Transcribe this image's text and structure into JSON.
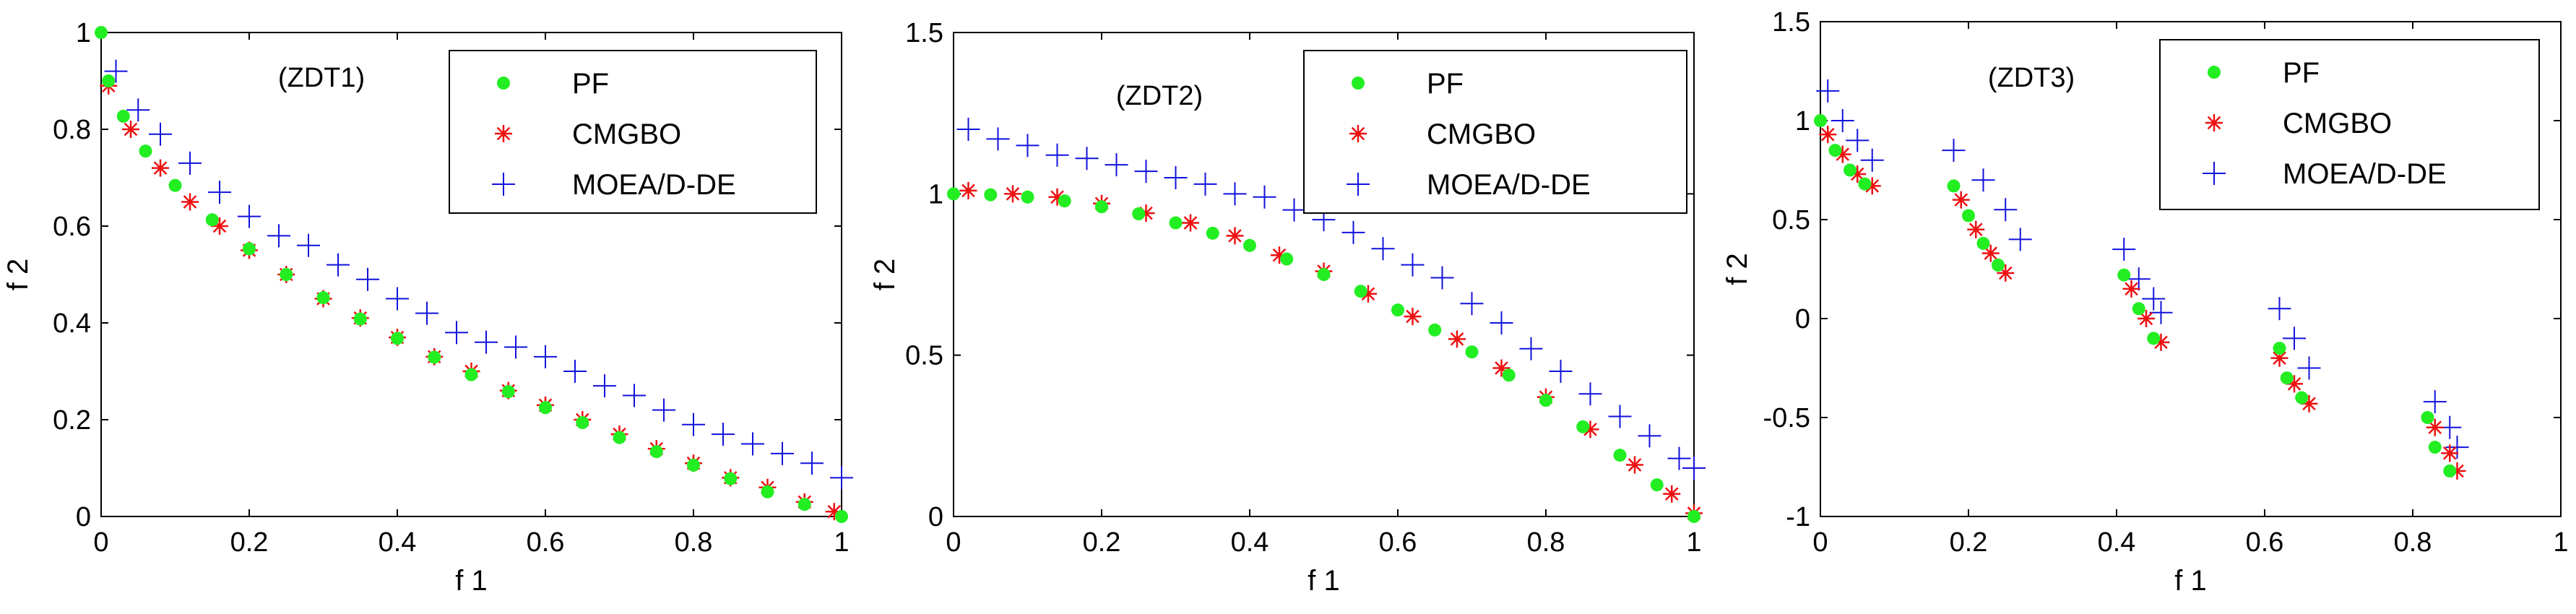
{
  "colors": {
    "pf": "#22ee22",
    "cmgbo": "#ee1111",
    "moead": "#1111dd",
    "axis": "#000000"
  },
  "chart_data": [
    {
      "type": "scatter",
      "annotation": "(ZDT1)",
      "xlabel": "f 1",
      "ylabel": "f 2",
      "xlim": [
        0,
        1
      ],
      "ylim": [
        0,
        1
      ],
      "xticks": [
        "0",
        "0.2",
        "0.4",
        "0.6",
        "0.8",
        "1"
      ],
      "yticks": [
        "0",
        "0.2",
        "0.4",
        "0.6",
        "0.8",
        "1"
      ],
      "legend_position": "top-right",
      "series": [
        {
          "name": "PF",
          "marker": "dot",
          "points": [
            [
              0,
              1
            ],
            [
              0.01,
              0.9
            ],
            [
              0.03,
              0.827
            ],
            [
              0.06,
              0.755
            ],
            [
              0.1,
              0.684
            ],
            [
              0.15,
              0.613
            ],
            [
              0.2,
              0.553
            ],
            [
              0.25,
              0.5
            ],
            [
              0.3,
              0.452
            ],
            [
              0.35,
              0.408
            ],
            [
              0.4,
              0.368
            ],
            [
              0.45,
              0.329
            ],
            [
              0.5,
              0.293
            ],
            [
              0.55,
              0.258
            ],
            [
              0.6,
              0.225
            ],
            [
              0.65,
              0.194
            ],
            [
              0.7,
              0.163
            ],
            [
              0.75,
              0.134
            ],
            [
              0.8,
              0.106
            ],
            [
              0.85,
              0.078
            ],
            [
              0.9,
              0.051
            ],
            [
              0.95,
              0.025
            ],
            [
              1,
              0
            ]
          ]
        },
        {
          "name": "CMGBO",
          "marker": "star",
          "points": [
            [
              0.01,
              0.89
            ],
            [
              0.04,
              0.8
            ],
            [
              0.08,
              0.72
            ],
            [
              0.12,
              0.65
            ],
            [
              0.16,
              0.6
            ],
            [
              0.2,
              0.55
            ],
            [
              0.25,
              0.5
            ],
            [
              0.3,
              0.45
            ],
            [
              0.35,
              0.41
            ],
            [
              0.4,
              0.37
            ],
            [
              0.45,
              0.33
            ],
            [
              0.5,
              0.3
            ],
            [
              0.55,
              0.26
            ],
            [
              0.6,
              0.23
            ],
            [
              0.65,
              0.2
            ],
            [
              0.7,
              0.17
            ],
            [
              0.75,
              0.14
            ],
            [
              0.8,
              0.11
            ],
            [
              0.85,
              0.08
            ],
            [
              0.9,
              0.06
            ],
            [
              0.95,
              0.03
            ],
            [
              0.99,
              0.01
            ]
          ]
        },
        {
          "name": "MOEA/D-DE",
          "marker": "plus",
          "points": [
            [
              0.02,
              0.92
            ],
            [
              0.05,
              0.84
            ],
            [
              0.08,
              0.79
            ],
            [
              0.12,
              0.73
            ],
            [
              0.16,
              0.67
            ],
            [
              0.2,
              0.62
            ],
            [
              0.24,
              0.58
            ],
            [
              0.28,
              0.56
            ],
            [
              0.32,
              0.52
            ],
            [
              0.36,
              0.49
            ],
            [
              0.4,
              0.45
            ],
            [
              0.44,
              0.42
            ],
            [
              0.48,
              0.38
            ],
            [
              0.52,
              0.36
            ],
            [
              0.56,
              0.35
            ],
            [
              0.6,
              0.33
            ],
            [
              0.64,
              0.3
            ],
            [
              0.68,
              0.27
            ],
            [
              0.72,
              0.25
            ],
            [
              0.76,
              0.22
            ],
            [
              0.8,
              0.19
            ],
            [
              0.84,
              0.17
            ],
            [
              0.88,
              0.15
            ],
            [
              0.92,
              0.13
            ],
            [
              0.96,
              0.11
            ],
            [
              1,
              0.08
            ]
          ]
        }
      ]
    },
    {
      "type": "scatter",
      "annotation": "(ZDT2)",
      "xlabel": "f 1",
      "ylabel": "f 2",
      "xlim": [
        0,
        1
      ],
      "ylim": [
        0,
        1.5
      ],
      "xticks": [
        "0",
        "0.2",
        "0.4",
        "0.6",
        "0.8",
        "1"
      ],
      "yticks": [
        "0",
        "0.5",
        "1",
        "1.5"
      ],
      "legend_position": "top-right",
      "series": [
        {
          "name": "PF",
          "marker": "dot",
          "points": [
            [
              0,
              1
            ],
            [
              0.05,
              0.997
            ],
            [
              0.1,
              0.99
            ],
            [
              0.15,
              0.978
            ],
            [
              0.2,
              0.96
            ],
            [
              0.25,
              0.938
            ],
            [
              0.3,
              0.91
            ],
            [
              0.35,
              0.878
            ],
            [
              0.4,
              0.84
            ],
            [
              0.45,
              0.798
            ],
            [
              0.5,
              0.75
            ],
            [
              0.55,
              0.698
            ],
            [
              0.6,
              0.64
            ],
            [
              0.65,
              0.578
            ],
            [
              0.7,
              0.51
            ],
            [
              0.75,
              0.438
            ],
            [
              0.8,
              0.36
            ],
            [
              0.85,
              0.278
            ],
            [
              0.9,
              0.19
            ],
            [
              0.95,
              0.098
            ],
            [
              1,
              0
            ]
          ]
        },
        {
          "name": "CMGBO",
          "marker": "star",
          "points": [
            [
              0.02,
              1.01
            ],
            [
              0.08,
              1
            ],
            [
              0.14,
              0.99
            ],
            [
              0.2,
              0.97
            ],
            [
              0.26,
              0.94
            ],
            [
              0.32,
              0.91
            ],
            [
              0.38,
              0.87
            ],
            [
              0.44,
              0.81
            ],
            [
              0.5,
              0.76
            ],
            [
              0.56,
              0.69
            ],
            [
              0.62,
              0.62
            ],
            [
              0.68,
              0.55
            ],
            [
              0.74,
              0.46
            ],
            [
              0.8,
              0.37
            ],
            [
              0.86,
              0.27
            ],
            [
              0.92,
              0.16
            ],
            [
              0.97,
              0.07
            ],
            [
              1,
              0.01
            ]
          ]
        },
        {
          "name": "MOEA/D-DE",
          "marker": "plus",
          "points": [
            [
              0.02,
              1.2
            ],
            [
              0.06,
              1.17
            ],
            [
              0.1,
              1.15
            ],
            [
              0.14,
              1.12
            ],
            [
              0.18,
              1.11
            ],
            [
              0.22,
              1.09
            ],
            [
              0.26,
              1.07
            ],
            [
              0.3,
              1.05
            ],
            [
              0.34,
              1.03
            ],
            [
              0.38,
              1
            ],
            [
              0.42,
              0.99
            ],
            [
              0.46,
              0.95
            ],
            [
              0.5,
              0.92
            ],
            [
              0.54,
              0.88
            ],
            [
              0.58,
              0.83
            ],
            [
              0.62,
              0.78
            ],
            [
              0.66,
              0.74
            ],
            [
              0.7,
              0.66
            ],
            [
              0.74,
              0.6
            ],
            [
              0.78,
              0.52
            ],
            [
              0.82,
              0.45
            ],
            [
              0.86,
              0.38
            ],
            [
              0.9,
              0.31
            ],
            [
              0.94,
              0.25
            ],
            [
              0.98,
              0.18
            ],
            [
              1,
              0.15
            ]
          ]
        }
      ]
    },
    {
      "type": "scatter",
      "annotation": "(ZDT3)",
      "xlabel": "f 1",
      "ylabel": "f 2",
      "xlim": [
        0,
        1
      ],
      "ylim": [
        -1,
        1.5
      ],
      "xticks": [
        "0",
        "0.2",
        "0.4",
        "0.6",
        "0.8",
        "1"
      ],
      "yticks": [
        "-1",
        "-0.5",
        "0",
        "0.5",
        "1",
        "1.5"
      ],
      "legend_position": "top-right",
      "series": [
        {
          "name": "PF",
          "marker": "dot",
          "points": [
            [
              0,
              1
            ],
            [
              0.02,
              0.85
            ],
            [
              0.04,
              0.75
            ],
            [
              0.06,
              0.68
            ],
            [
              0.18,
              0.67
            ],
            [
              0.2,
              0.52
            ],
            [
              0.22,
              0.38
            ],
            [
              0.24,
              0.27
            ],
            [
              0.41,
              0.22
            ],
            [
              0.43,
              0.05
            ],
            [
              0.45,
              -0.1
            ],
            [
              0.62,
              -0.15
            ],
            [
              0.63,
              -0.3
            ],
            [
              0.65,
              -0.4
            ],
            [
              0.82,
              -0.5
            ],
            [
              0.83,
              -0.65
            ],
            [
              0.85,
              -0.77
            ]
          ]
        },
        {
          "name": "CMGBO",
          "marker": "star",
          "points": [
            [
              0.01,
              0.93
            ],
            [
              0.03,
              0.83
            ],
            [
              0.05,
              0.73
            ],
            [
              0.07,
              0.67
            ],
            [
              0.19,
              0.6
            ],
            [
              0.21,
              0.45
            ],
            [
              0.23,
              0.33
            ],
            [
              0.25,
              0.23
            ],
            [
              0.42,
              0.15
            ],
            [
              0.44,
              0
            ],
            [
              0.46,
              -0.12
            ],
            [
              0.62,
              -0.2
            ],
            [
              0.64,
              -0.33
            ],
            [
              0.66,
              -0.43
            ],
            [
              0.83,
              -0.55
            ],
            [
              0.85,
              -0.68
            ],
            [
              0.86,
              -0.77
            ]
          ]
        },
        {
          "name": "MOEA/D-DE",
          "marker": "plus",
          "points": [
            [
              0.01,
              1.15
            ],
            [
              0.03,
              1
            ],
            [
              0.05,
              0.9
            ],
            [
              0.07,
              0.8
            ],
            [
              0.18,
              0.85
            ],
            [
              0.22,
              0.7
            ],
            [
              0.25,
              0.55
            ],
            [
              0.27,
              0.4
            ],
            [
              0.41,
              0.35
            ],
            [
              0.43,
              0.2
            ],
            [
              0.45,
              0.1
            ],
            [
              0.46,
              0.03
            ],
            [
              0.62,
              0.05
            ],
            [
              0.64,
              -0.1
            ],
            [
              0.66,
              -0.25
            ],
            [
              0.83,
              -0.42
            ],
            [
              0.85,
              -0.55
            ],
            [
              0.86,
              -0.65
            ]
          ]
        }
      ]
    }
  ]
}
